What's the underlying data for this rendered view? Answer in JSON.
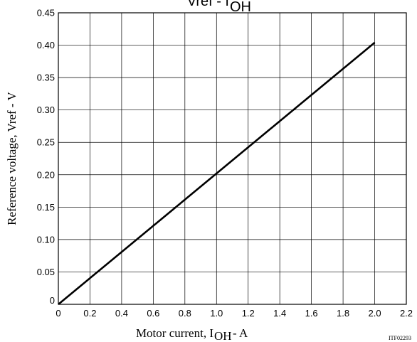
{
  "chart_data": {
    "type": "line",
    "title_main": "Vref - I",
    "title_sub": "OH",
    "xlabel_main": "Motor current, I",
    "xlabel_sub": "OH",
    "xlabel_suffix": " - A",
    "ylabel": "Reference voltage, Vref - V",
    "xlim": [
      0,
      2.2
    ],
    "ylim": [
      0,
      0.45
    ],
    "x_ticks": [
      "0",
      "0.2",
      "0.4",
      "0.6",
      "0.8",
      "1.0",
      "1.2",
      "1.4",
      "1.6",
      "1.8",
      "2.0",
      "2.2"
    ],
    "x_tick_values": [
      0,
      0.2,
      0.4,
      0.6,
      0.8,
      1.0,
      1.2,
      1.4,
      1.6,
      1.8,
      2.0,
      2.2
    ],
    "y_ticks": [
      "0",
      "0.05",
      "0.10",
      "0.15",
      "0.20",
      "0.25",
      "0.30",
      "0.35",
      "0.40",
      "0.45"
    ],
    "y_tick_values": [
      0,
      0.05,
      0.1,
      0.15,
      0.2,
      0.25,
      0.3,
      0.35,
      0.4,
      0.45
    ],
    "grid": true,
    "series": [
      {
        "x": [
          0,
          2.0
        ],
        "y": [
          0,
          0.404
        ]
      }
    ],
    "code": "ITF02293"
  }
}
